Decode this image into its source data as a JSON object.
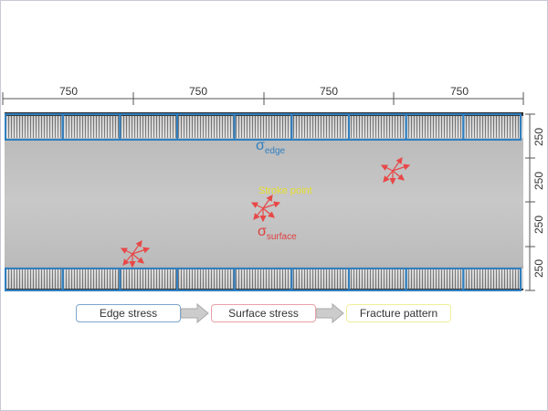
{
  "dimensions": {
    "horizontal": [
      "750",
      "750",
      "750",
      "750"
    ],
    "vertical": [
      "250",
      "250",
      "250",
      "250"
    ]
  },
  "labels": {
    "sigma_edge": {
      "symbol": "σ",
      "subscript": "edge"
    },
    "sigma_surface": {
      "symbol": "σ",
      "subscript": "surface"
    },
    "stroke_point": "Stroke point"
  },
  "flow": [
    {
      "label": "Edge stress",
      "border": "#7aa6cc"
    },
    {
      "label": "Surface stress",
      "border": "#e8a0a8"
    },
    {
      "label": "Fracture pattern",
      "border": "#f0ee9a"
    }
  ],
  "colors": {
    "edge": "#2f7fc0",
    "surface": "#e04040",
    "stroke": "#e8e030",
    "arrows": "#e84848"
  }
}
